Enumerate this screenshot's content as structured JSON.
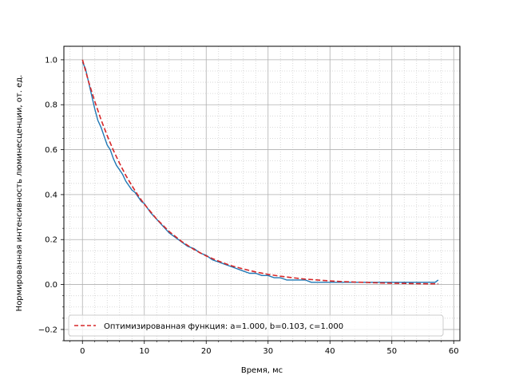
{
  "chart_data": {
    "type": "line",
    "xlabel": "Время, мс",
    "ylabel": "Нормированная интенсивность люминесценции, от. ед.",
    "xlim": [
      -3,
      61
    ],
    "ylim": [
      -0.25,
      1.06
    ],
    "x_ticks": [
      0,
      10,
      20,
      30,
      40,
      50,
      60
    ],
    "y_ticks": [
      -0.2,
      0.0,
      0.2,
      0.4,
      0.6,
      0.8,
      1.0
    ],
    "x_tick_labels": [
      "0",
      "10",
      "20",
      "30",
      "40",
      "50",
      "60"
    ],
    "y_tick_labels": [
      "−0.2",
      "0.0",
      "0.2",
      "0.4",
      "0.6",
      "0.8",
      "1.0"
    ],
    "grid": "major and minor",
    "legend_position": "lower center",
    "series": [
      {
        "name": "",
        "style": "solid",
        "color": "#1f77b4",
        "x": [
          0,
          0.5,
          1,
          1.5,
          2,
          2.5,
          3,
          3.5,
          4,
          4.5,
          5,
          5.5,
          6,
          6.5,
          7,
          7.5,
          8,
          8.5,
          9,
          9.5,
          10,
          11,
          12,
          13,
          14,
          15,
          16,
          17,
          18,
          19,
          20,
          21,
          22,
          23,
          24,
          25,
          26,
          27,
          28,
          29,
          30,
          31,
          32,
          33,
          34,
          35,
          36,
          37,
          38,
          39,
          40,
          41,
          42,
          43,
          44,
          45,
          46,
          47,
          48,
          49,
          50,
          51,
          52,
          53,
          54,
          55,
          56,
          57,
          57.5
        ],
        "y": [
          0.99,
          0.96,
          0.9,
          0.84,
          0.78,
          0.73,
          0.7,
          0.66,
          0.62,
          0.6,
          0.56,
          0.53,
          0.51,
          0.49,
          0.46,
          0.44,
          0.42,
          0.41,
          0.39,
          0.37,
          0.36,
          0.32,
          0.29,
          0.26,
          0.23,
          0.21,
          0.19,
          0.17,
          0.16,
          0.14,
          0.13,
          0.11,
          0.1,
          0.09,
          0.08,
          0.07,
          0.06,
          0.05,
          0.05,
          0.04,
          0.04,
          0.03,
          0.03,
          0.02,
          0.02,
          0.02,
          0.02,
          0.01,
          0.01,
          0.01,
          0.01,
          0.01,
          0.01,
          0.01,
          0.01,
          0.01,
          0.01,
          0.01,
          0.01,
          0.01,
          0.01,
          0.01,
          0.01,
          0.01,
          0.01,
          0.01,
          0.01,
          0.01,
          0.02
        ]
      },
      {
        "name": "Оптимизированная функция: a=1.000, b=0.103, c=1.000",
        "style": "dashed",
        "color": "#d62728",
        "x": [
          0,
          1,
          2,
          3,
          4,
          5,
          6,
          7,
          8,
          9,
          10,
          12,
          14,
          16,
          18,
          20,
          22,
          24,
          26,
          28,
          30,
          32,
          34,
          36,
          38,
          40,
          42,
          44,
          46,
          48,
          50,
          52,
          54,
          56,
          57.5
        ],
        "y": [
          1.0,
          0.902,
          0.814,
          0.734,
          0.662,
          0.597,
          0.539,
          0.486,
          0.439,
          0.396,
          0.357,
          0.291,
          0.236,
          0.192,
          0.156,
          0.127,
          0.104,
          0.084,
          0.069,
          0.056,
          0.045,
          0.037,
          0.03,
          0.024,
          0.02,
          0.016,
          0.013,
          0.011,
          0.009,
          0.007,
          0.006,
          0.005,
          0.004,
          0.003,
          0.003
        ]
      }
    ]
  }
}
